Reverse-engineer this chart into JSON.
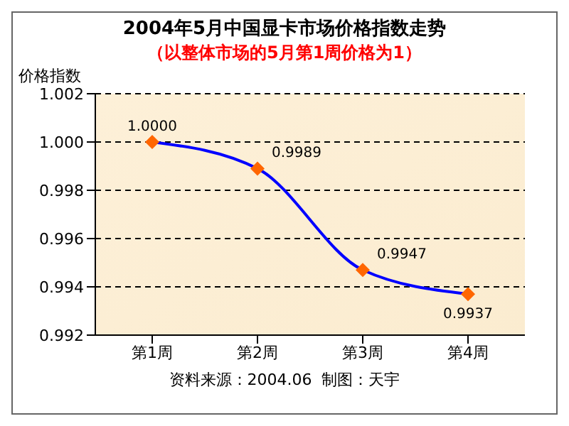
{
  "chart_data": {
    "type": "line",
    "title": "2004年5月中国显卡市场价格指数走势",
    "subtitle": "（以整体市场的5月第1周价格为1）",
    "ylabel": "价格指数",
    "categories": [
      "第1周",
      "第2周",
      "第3周",
      "第4周"
    ],
    "series": [
      {
        "color": "#0000ff",
        "values": [
          1.0,
          0.9989,
          0.9947,
          0.9937
        ],
        "value_labels": [
          "1.0000",
          "0.9989",
          "0.9947",
          "0.9937"
        ]
      }
    ],
    "ylim": [
      0.992,
      1.002
    ],
    "yticks": [
      0.992,
      0.994,
      0.996,
      0.998,
      {
        "value": 1.0,
        "label": "1.000"
      },
      1.002
    ],
    "grid": "y",
    "marker": "diamond",
    "line_style": "solid",
    "annotations": [
      "资料来源：2004.06  制图：天宇"
    ]
  }
}
